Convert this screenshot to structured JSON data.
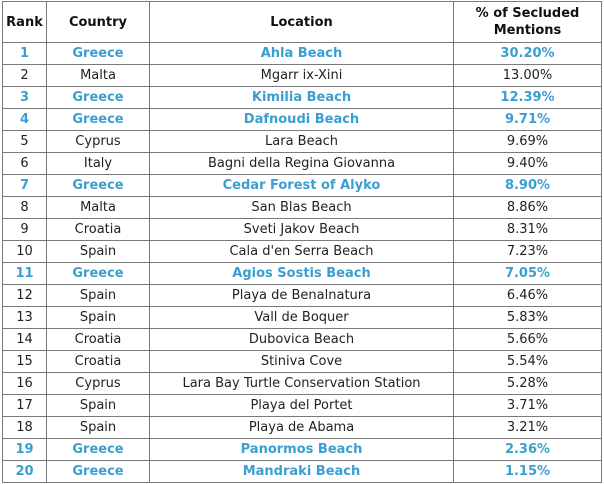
{
  "table": {
    "headers": {
      "rank": "Rank",
      "country": "Country",
      "location": "Location",
      "pct": "% of Secluded Mentions"
    },
    "highlight_color": "#3a9fd0",
    "rows": [
      {
        "rank": "1",
        "country": "Greece",
        "location": "Ahla Beach",
        "pct": "30.20%",
        "highlight": true
      },
      {
        "rank": "2",
        "country": "Malta",
        "location": "Mgarr ix-Xini",
        "pct": "13.00%",
        "highlight": false
      },
      {
        "rank": "3",
        "country": "Greece",
        "location": "Kimilia Beach",
        "pct": "12.39%",
        "highlight": true
      },
      {
        "rank": "4",
        "country": "Greece",
        "location": "Dafnoudi Beach",
        "pct": "9.71%",
        "highlight": true
      },
      {
        "rank": "5",
        "country": "Cyprus",
        "location": "Lara Beach",
        "pct": "9.69%",
        "highlight": false
      },
      {
        "rank": "6",
        "country": "Italy",
        "location": "Bagni della Regina Giovanna",
        "pct": "9.40%",
        "highlight": false
      },
      {
        "rank": "7",
        "country": "Greece",
        "location": "Cedar Forest of Alyko",
        "pct": "8.90%",
        "highlight": true
      },
      {
        "rank": "8",
        "country": "Malta",
        "location": "San Blas Beach",
        "pct": "8.86%",
        "highlight": false
      },
      {
        "rank": "9",
        "country": "Croatia",
        "location": "Sveti Jakov Beach",
        "pct": "8.31%",
        "highlight": false
      },
      {
        "rank": "10",
        "country": "Spain",
        "location": "Cala d'en Serra Beach",
        "pct": "7.23%",
        "highlight": false
      },
      {
        "rank": "11",
        "country": "Greece",
        "location": "Agios Sostis Beach",
        "pct": "7.05%",
        "highlight": true
      },
      {
        "rank": "12",
        "country": "Spain",
        "location": "Playa de Benalnatura",
        "pct": "6.46%",
        "highlight": false
      },
      {
        "rank": "13",
        "country": "Spain",
        "location": "Vall de Boquer",
        "pct": "5.83%",
        "highlight": false
      },
      {
        "rank": "14",
        "country": "Croatia",
        "location": "Dubovica Beach",
        "pct": "5.66%",
        "highlight": false
      },
      {
        "rank": "15",
        "country": "Croatia",
        "location": "Stiniva Cove",
        "pct": "5.54%",
        "highlight": false
      },
      {
        "rank": "16",
        "country": "Cyprus",
        "location": "Lara Bay Turtle Conservation Station",
        "pct": "5.28%",
        "highlight": false
      },
      {
        "rank": "17",
        "country": "Spain",
        "location": "Playa del Portet",
        "pct": "3.71%",
        "highlight": false
      },
      {
        "rank": "18",
        "country": "Spain",
        "location": "Playa de Abama",
        "pct": "3.21%",
        "highlight": false
      },
      {
        "rank": "19",
        "country": "Greece",
        "location": "Panormos Beach",
        "pct": "2.36%",
        "highlight": true
      },
      {
        "rank": "20",
        "country": "Greece",
        "location": "Mandraki Beach",
        "pct": "1.15%",
        "highlight": true
      }
    ]
  }
}
